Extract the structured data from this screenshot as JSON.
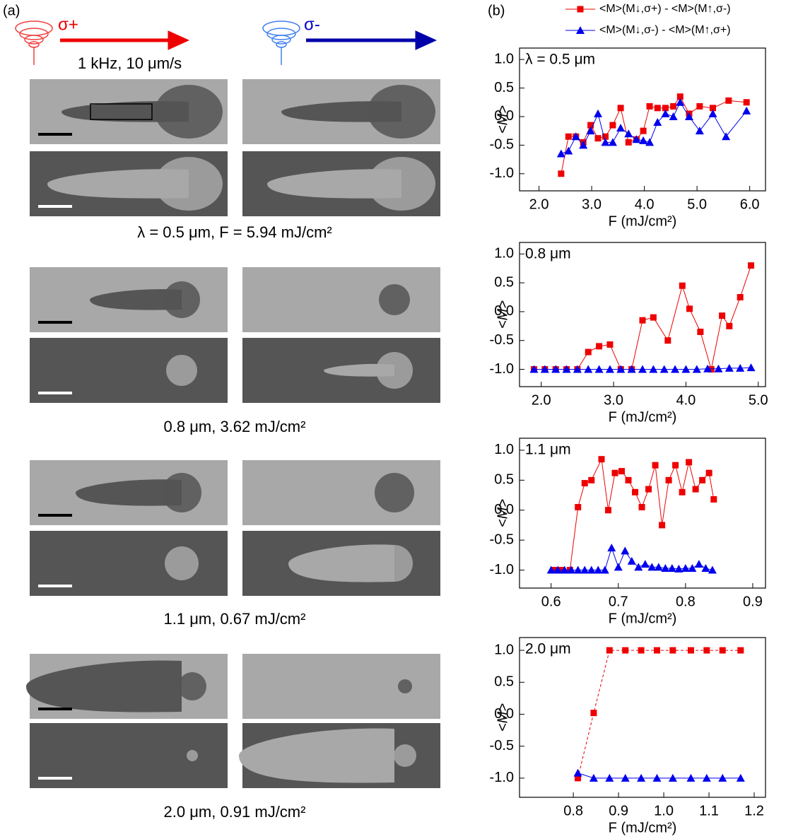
{
  "panel_a": {
    "label": "(a)",
    "sigma_plus": "σ+",
    "sigma_minus": "σ-",
    "conditions": "1 kHz, 10 μm/s",
    "captions": [
      "λ = 0.5 μm, F = 5.94 mJ/cm²",
      "0.8 μm, 3.62 mJ/cm²",
      "1.1 μm, 0.67 mJ/cm²",
      "2.0 μm, 0.91 mJ/cm²"
    ]
  },
  "panel_b": {
    "label": "(b)"
  },
  "chart_data": [
    {
      "type": "line",
      "annotation": "λ = 0.5 μm",
      "x_label": "F (mJ/cm²)",
      "y_label": "<M>",
      "xlim": [
        1.63,
        6.3
      ],
      "xticks": [
        {
          "value": 2,
          "label": "2.0"
        },
        {
          "value": 3,
          "label": "3.0"
        },
        {
          "value": 4,
          "label": "4.0"
        },
        {
          "value": 5,
          "label": "5.0"
        },
        {
          "value": 6,
          "label": "6.0"
        }
      ],
      "ylim": [
        -1.3,
        1.2
      ],
      "yticks": [
        {
          "value": -1,
          "label": "-1.0"
        },
        -0.5,
        {
          "value": 0,
          "label": "0.0"
        },
        0.5,
        {
          "value": 1,
          "label": "1.0"
        }
      ],
      "series": [
        {
          "name": "<M>(M↓,σ+) - <M>(M↑,σ-)",
          "color": "#ee0000",
          "marker": "square",
          "x": [
            2.42,
            2.56,
            2.7,
            2.84,
            2.98,
            3.12,
            3.26,
            3.4,
            3.55,
            3.7,
            3.85,
            3.98,
            4.1,
            4.25,
            4.4,
            4.55,
            4.68,
            4.85,
            5.05,
            5.3,
            5.6,
            5.94
          ],
          "values": [
            -1.0,
            -0.35,
            -0.35,
            -0.45,
            -0.15,
            -0.38,
            -0.35,
            -0.15,
            0.15,
            -0.45,
            -0.4,
            -0.25,
            0.18,
            0.15,
            0.15,
            0.18,
            0.35,
            0.05,
            0.18,
            0.15,
            0.28,
            0.25
          ]
        },
        {
          "name": "<M>(M↓,σ-) - <M>(M↑,σ+)",
          "color": "#0000ee",
          "marker": "triangle",
          "x": [
            2.42,
            2.56,
            2.7,
            2.84,
            2.98,
            3.12,
            3.26,
            3.4,
            3.55,
            3.7,
            3.85,
            3.98,
            4.1,
            4.25,
            4.4,
            4.55,
            4.68,
            4.85,
            5.05,
            5.3,
            5.55,
            5.94
          ],
          "values": [
            -0.65,
            -0.6,
            -0.35,
            -0.5,
            -0.25,
            0.05,
            -0.45,
            -0.45,
            -0.2,
            -0.3,
            -0.4,
            -0.42,
            -0.45,
            -0.1,
            0.05,
            0.0,
            0.25,
            0.0,
            -0.25,
            0.05,
            -0.35,
            0.1
          ]
        }
      ]
    },
    {
      "type": "line",
      "annotation": "0.8 μm",
      "x_label": "F (mJ/cm²)",
      "y_label": "<M>",
      "xlim": [
        1.7,
        5.1
      ],
      "xticks": [
        {
          "value": 2,
          "label": "2.0"
        },
        {
          "value": 3,
          "label": "3.0"
        },
        {
          "value": 4,
          "label": "4.0"
        },
        {
          "value": 5,
          "label": "5.0"
        }
      ],
      "ylim": [
        -1.3,
        1.2
      ],
      "yticks": [
        {
          "value": -1,
          "label": "-1.0"
        },
        -0.5,
        {
          "value": 0,
          "label": "0.0"
        },
        0.5,
        {
          "value": 1,
          "label": "1.0"
        }
      ],
      "series": [
        {
          "color": "#ee0000",
          "marker": "square",
          "x": [
            1.9,
            2.05,
            2.2,
            2.35,
            2.5,
            2.65,
            2.8,
            2.95,
            3.1,
            3.25,
            3.4,
            3.55,
            3.75,
            3.95,
            4.05,
            4.2,
            4.35,
            4.5,
            4.6,
            4.75,
            4.9
          ],
          "values": [
            -1.0,
            -1.0,
            -1.0,
            -1.0,
            -1.0,
            -0.7,
            -0.6,
            -0.57,
            -1.0,
            -1.0,
            -0.15,
            -0.1,
            -0.5,
            0.45,
            0.05,
            -0.35,
            -1.0,
            -0.07,
            -0.25,
            0.25,
            0.8
          ]
        },
        {
          "color": "#0000ee",
          "marker": "triangle",
          "x": [
            1.9,
            2.05,
            2.2,
            2.35,
            2.5,
            2.65,
            2.8,
            2.95,
            3.1,
            3.25,
            3.4,
            3.55,
            3.7,
            3.85,
            4.0,
            4.15,
            4.3,
            4.45,
            4.6,
            4.75,
            4.9
          ],
          "values": [
            -1.0,
            -1.0,
            -1.0,
            -1.0,
            -1.0,
            -1.0,
            -1.0,
            -1.0,
            -1.0,
            -1.0,
            -1.0,
            -1.0,
            -1.0,
            -1.0,
            -1.0,
            -1.0,
            -0.99,
            -0.99,
            -0.98,
            -0.98,
            -0.97
          ]
        }
      ]
    },
    {
      "type": "line",
      "annotation": "1.1 μm",
      "x_label": "F (mJ/cm²)",
      "y_label": "<M>",
      "xlim": [
        0.553,
        0.919
      ],
      "xticks": [
        0.6,
        0.7,
        0.8,
        0.9
      ],
      "ylim": [
        -1.3,
        1.2
      ],
      "yticks": [
        {
          "value": -1,
          "label": "-1.0"
        },
        -0.5,
        {
          "value": 0,
          "label": "0.0"
        },
        0.5,
        {
          "value": 1,
          "label": "1.0"
        }
      ],
      "series": [
        {
          "color": "#ee0000",
          "marker": "square",
          "x": [
            0.605,
            0.615,
            0.628,
            0.64,
            0.65,
            0.66,
            0.675,
            0.685,
            0.695,
            0.705,
            0.715,
            0.725,
            0.735,
            0.745,
            0.755,
            0.765,
            0.775,
            0.785,
            0.795,
            0.805,
            0.815,
            0.825,
            0.835,
            0.842
          ],
          "values": [
            -1.0,
            -1.0,
            -1.0,
            0.05,
            0.45,
            0.5,
            0.85,
            0.0,
            0.62,
            0.65,
            0.5,
            0.3,
            0.05,
            0.35,
            0.75,
            -0.25,
            0.5,
            0.75,
            0.3,
            0.8,
            0.35,
            0.5,
            0.62,
            0.18
          ]
        },
        {
          "color": "#0000ee",
          "marker": "triangle",
          "x": [
            0.6,
            0.61,
            0.62,
            0.63,
            0.64,
            0.65,
            0.66,
            0.67,
            0.68,
            0.69,
            0.7,
            0.71,
            0.72,
            0.73,
            0.74,
            0.75,
            0.76,
            0.77,
            0.78,
            0.79,
            0.8,
            0.81,
            0.82,
            0.83,
            0.84
          ],
          "values": [
            -1.0,
            -1.0,
            -1.0,
            -1.0,
            -1.0,
            -1.0,
            -1.0,
            -1.0,
            -1.0,
            -0.63,
            -0.95,
            -0.68,
            -0.85,
            -0.95,
            -0.9,
            -0.95,
            -0.95,
            -0.97,
            -0.97,
            -0.98,
            -0.97,
            -0.97,
            -0.9,
            -0.97,
            -1.0
          ]
        }
      ]
    },
    {
      "type": "line",
      "annotation": "2.0 μm",
      "x_label": "F (mJ/cm²)",
      "y_label": "<M>",
      "xlim": [
        0.681,
        1.225
      ],
      "xticks": [
        {
          "value": 0.8,
          "label": "0.8"
        },
        {
          "value": 0.9,
          "label": "0.9"
        },
        {
          "value": 1,
          "label": "1.0"
        },
        {
          "value": 1.1,
          "label": "1.1"
        },
        {
          "value": 1.2,
          "label": "1.2"
        }
      ],
      "ylim": [
        -1.3,
        1.2
      ],
      "yticks": [
        {
          "value": -1,
          "label": "-1.0"
        },
        -0.5,
        {
          "value": 0,
          "label": "0.0"
        },
        0.5,
        {
          "value": 1,
          "label": "1.0"
        }
      ],
      "series": [
        {
          "color": "#ee0000",
          "marker": "square",
          "dashed": true,
          "x": [
            0.81,
            0.845,
            0.88,
            0.915,
            0.95,
            0.985,
            1.02,
            1.06,
            1.095,
            1.13,
            1.17
          ],
          "values": [
            -1.0,
            0.02,
            1.0,
            1.0,
            1.0,
            1.0,
            1.0,
            1.0,
            1.0,
            1.0,
            1.0
          ]
        },
        {
          "color": "#0000ee",
          "marker": "triangle",
          "x": [
            0.81,
            0.845,
            0.88,
            0.915,
            0.95,
            0.985,
            1.02,
            1.06,
            1.095,
            1.13,
            1.17
          ],
          "values": [
            -0.92,
            -1.0,
            -1.0,
            -1.0,
            -1.0,
            -1.0,
            -1.0,
            -1.0,
            -1.0,
            -1.0,
            -1.0
          ]
        }
      ]
    }
  ]
}
